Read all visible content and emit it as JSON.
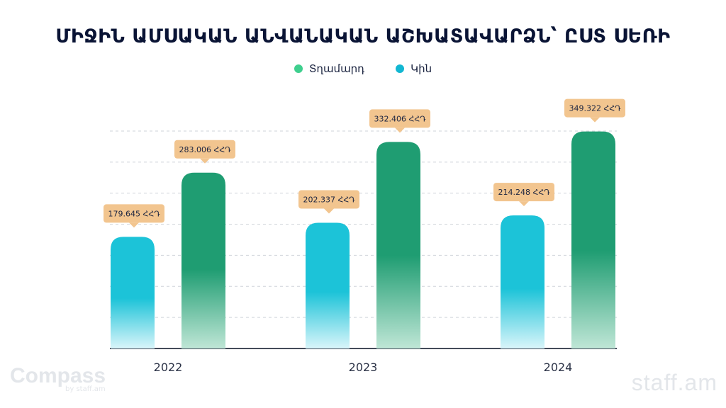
{
  "title": "ՄԻՋԻՆ ԱՄՍԱԿԱՆ ԱՆՎԱՆԱԿԱՆ ԱՇԽԱՏԱՎԱՐՁՆ՝ ԸՍՏ ՍԵՌԻ",
  "legend": [
    {
      "label": "Տղամարդ",
      "color": "#3fcf8e"
    },
    {
      "label": "Կին",
      "color": "#12b7d2"
    }
  ],
  "colors": {
    "men_top": "#1f9d72",
    "men_bottom": "#bfe6d6",
    "women_top": "#1cc3d8",
    "women_bottom": "#d9f5fa",
    "label_bg": "#f2c58f",
    "axis": "#444b5a",
    "grid": "#cfd3da"
  },
  "chart_data": {
    "type": "bar",
    "categories": [
      "2022",
      "2023",
      "2024"
    ],
    "series": [
      {
        "name": "Կին",
        "values": [
          179645,
          202337,
          214248
        ],
        "labels": [
          "179.645 ՀՀԴ",
          "202.337 ՀՀԴ",
          "214.248 ՀՀԴ"
        ]
      },
      {
        "name": "Տղամարդ",
        "values": [
          283006,
          332406,
          349322
        ],
        "labels": [
          "283.006 ՀՀԴ",
          "332.406 ՀՀԴ",
          "349.322 ՀՀԴ"
        ]
      }
    ],
    "ylim": [
      0,
      350000
    ],
    "grid": true,
    "legend_position": "top-center"
  },
  "branding": {
    "left_logo": "Compass",
    "left_sub": "by staff.am",
    "right_logo": "staff.am"
  }
}
